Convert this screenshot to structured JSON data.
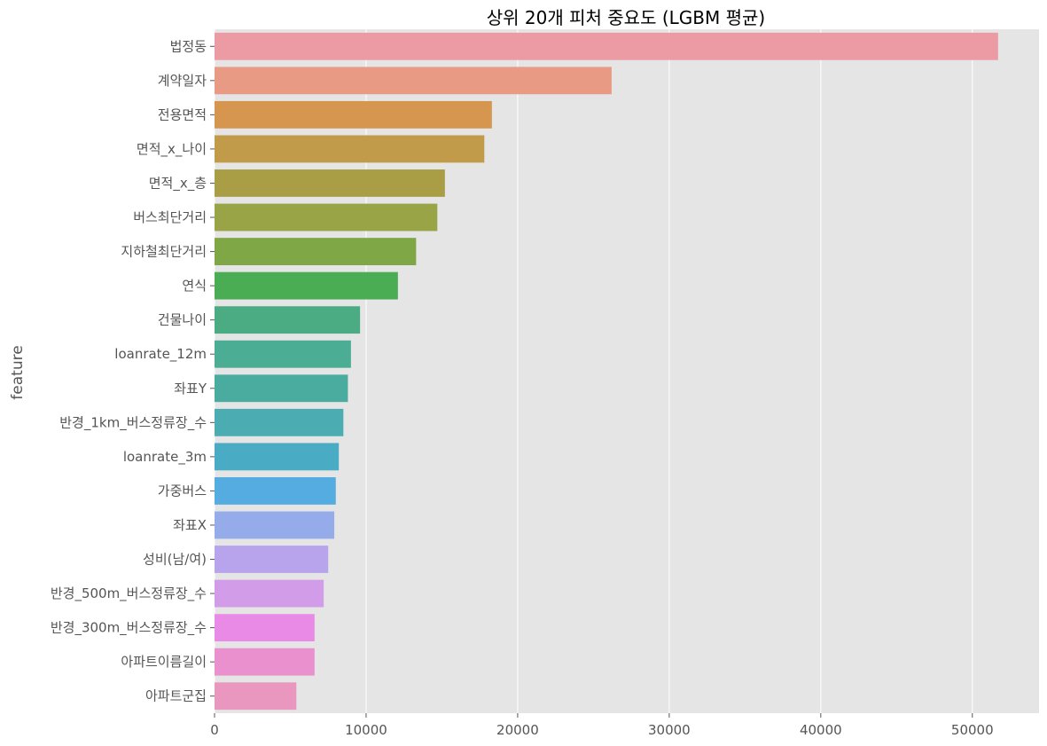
{
  "chart_data": {
    "type": "bar",
    "orientation": "horizontal",
    "title": "상위 20개 피처 중요도 (LGBM 평균)",
    "xlabel": "",
    "ylabel": "feature",
    "xlim": [
      0,
      54400
    ],
    "xticks": [
      0,
      10000,
      20000,
      30000,
      40000,
      50000
    ],
    "grid": true,
    "categories": [
      "법정동",
      "계약일자",
      "전용면적",
      "면적_x_나이",
      "면적_x_층",
      "버스최단거리",
      "지하철최단거리",
      "연식",
      "건물나이",
      "loanrate_12m",
      "좌표Y",
      "반경_1km_버스정류장_수",
      "loanrate_3m",
      "가중버스",
      "좌표X",
      "성비(남/여)",
      "반경_500m_버스정류장_수",
      "반경_300m_버스정류장_수",
      "아파트이름길이",
      "아파트군집"
    ],
    "values": [
      51700,
      26200,
      18300,
      17800,
      15200,
      14700,
      13300,
      12100,
      9600,
      9000,
      8800,
      8500,
      8200,
      8000,
      7900,
      7500,
      7200,
      6600,
      6600,
      5400
    ],
    "colors": [
      "#ec9aa3",
      "#e99a85",
      "#d7964f",
      "#c29b4a",
      "#a99e45",
      "#98a446",
      "#80a746",
      "#4aad53",
      "#4bab82",
      "#4aad94",
      "#4aab9f",
      "#4bacb2",
      "#4aabc4",
      "#55ace0",
      "#96acea",
      "#b7a4ec",
      "#d29ce8",
      "#e98be6",
      "#ea90cf",
      "#ea97bf"
    ]
  }
}
